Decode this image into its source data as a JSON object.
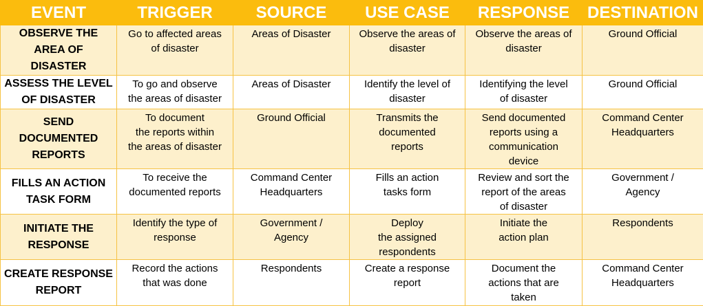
{
  "headers": [
    "EVENT",
    "TRIGGER",
    "SOURCE",
    "USE CASE",
    "RESPONSE",
    "DESTINATION"
  ],
  "rows": [
    [
      "OBSERVE THE\nAREA OF\nDISASTER",
      "Go to affected areas\nof disaster",
      "Areas of Disaster",
      "Observe the areas of\ndisaster",
      "Observe the areas of\ndisaster",
      "Ground Official"
    ],
    [
      "ASSESS THE LEVEL\nOF DISASTER",
      "To go and observe\nthe areas of disaster",
      "Areas of Disaster",
      "Identify the level of\ndisaster",
      "Identifying the level\nof disaster",
      "Ground Official"
    ],
    [
      "SEND\nDOCUMENTED\nREPORTS",
      "To document\nthe reports within\nthe areas of disaster",
      "Ground Official",
      "Transmits the\ndocumented\nreports",
      "Send documented\nreports using a\ncommunication\ndevice",
      "Command Center\nHeadquarters"
    ],
    [
      "FILLS AN ACTION\nTASK FORM",
      "To receive the\ndocumented reports",
      "Command Center\nHeadquarters",
      "Fills an action\ntasks form",
      "Review and sort the\nreport of the areas\nof disaster",
      "Government /\nAgency"
    ],
    [
      "INITIATE THE\nRESPONSE",
      "Identify the type of\nresponse",
      "Government /\nAgency",
      "Deploy\nthe assigned\nrespondents",
      "Initiate the\naction plan",
      "Respondents"
    ],
    [
      "CREATE RESPONSE\nREPORT",
      "Record the actions\nthat was done",
      "Respondents",
      "Create a response\nreport",
      "Document the\nactions that are\ntaken",
      "Command Center\nHeadquarters"
    ]
  ],
  "colors": {
    "header_bg": "#fbbc0d",
    "header_text": "#ffffff",
    "band_odd": "#fdf0cc",
    "band_even": "#ffffff",
    "grid": "#f6c243"
  }
}
